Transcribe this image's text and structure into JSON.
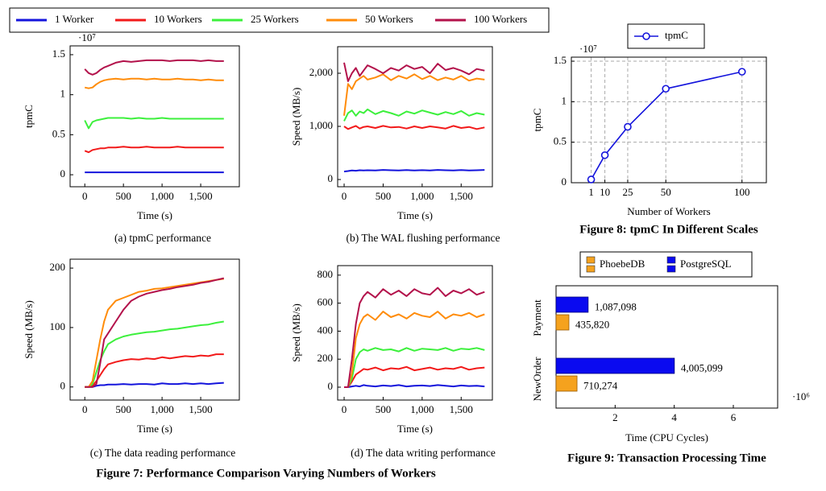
{
  "figure7_caption": "Figure 7: Performance Comparison Varying Numbers of Workers",
  "chart_data": [
    {
      "type": "line",
      "caption": "(a) tpmC performance",
      "x_label": "Time (s)",
      "y_label": "tpmC",
      "y_scale_label": "·10⁷",
      "xlim": [
        -190,
        2000
      ],
      "ylim": [
        -0.15,
        1.61
      ],
      "xticks": [
        0,
        500,
        {
          "value": 1000,
          "label": "1,000"
        },
        {
          "value": 1500,
          "label": "1,500"
        }
      ],
      "yticks": [
        0,
        0.5,
        1,
        1.5
      ],
      "x": [
        0,
        50,
        100,
        150,
        200,
        250,
        300,
        400,
        500,
        600,
        700,
        800,
        900,
        1000,
        1100,
        1200,
        1300,
        1400,
        1500,
        1600,
        1700,
        1800
      ],
      "series": [
        {
          "name": "1 Worker",
          "color": "#1414dc",
          "values": [
            0.03,
            0.03,
            0.03,
            0.03,
            0.03,
            0.03,
            0.03,
            0.03,
            0.03,
            0.03,
            0.03,
            0.03,
            0.03,
            0.03,
            0.03,
            0.03,
            0.03,
            0.03,
            0.03,
            0.03,
            0.03,
            0.03
          ]
        },
        {
          "name": "10 Workers",
          "color": "#f21a1a",
          "values": [
            0.3,
            0.28,
            0.31,
            0.32,
            0.33,
            0.33,
            0.34,
            0.34,
            0.35,
            0.34,
            0.34,
            0.35,
            0.34,
            0.34,
            0.34,
            0.35,
            0.34,
            0.34,
            0.34,
            0.34,
            0.34,
            0.34
          ]
        },
        {
          "name": "25 Workers",
          "color": "#3cf03c",
          "values": [
            0.68,
            0.58,
            0.66,
            0.68,
            0.69,
            0.7,
            0.71,
            0.71,
            0.71,
            0.7,
            0.71,
            0.7,
            0.7,
            0.71,
            0.7,
            0.7,
            0.7,
            0.7,
            0.7,
            0.7,
            0.7,
            0.7
          ]
        },
        {
          "name": "50 Workers",
          "color": "#ff8c0a",
          "values": [
            1.09,
            1.08,
            1.09,
            1.13,
            1.16,
            1.18,
            1.19,
            1.2,
            1.19,
            1.2,
            1.2,
            1.19,
            1.2,
            1.19,
            1.19,
            1.2,
            1.19,
            1.19,
            1.18,
            1.19,
            1.18,
            1.18
          ]
        },
        {
          "name": "100 Workers",
          "color": "#b3124b",
          "values": [
            1.32,
            1.27,
            1.25,
            1.27,
            1.31,
            1.34,
            1.36,
            1.4,
            1.42,
            1.41,
            1.42,
            1.43,
            1.43,
            1.43,
            1.42,
            1.43,
            1.43,
            1.43,
            1.42,
            1.43,
            1.42,
            1.42
          ]
        }
      ]
    },
    {
      "type": "line",
      "caption": "(b) The WAL flushing performance",
      "x_label": "Time (s)",
      "y_label": "Speed (MB/s)",
      "xlim": [
        -83,
        1900
      ],
      "ylim": [
        -136,
        2500
      ],
      "xticks": [
        0,
        500,
        {
          "value": 1000,
          "label": "1,000"
        },
        {
          "value": 1500,
          "label": "1,500"
        }
      ],
      "yticks": [
        0,
        {
          "value": 1000,
          "label": "1,000"
        },
        {
          "value": 2000,
          "label": "2,000"
        }
      ],
      "x": [
        0,
        50,
        100,
        150,
        200,
        250,
        300,
        400,
        500,
        600,
        700,
        800,
        900,
        1000,
        1100,
        1200,
        1300,
        1400,
        1500,
        1600,
        1700,
        1800
      ],
      "series": [
        {
          "name": "1 Worker",
          "color": "#1414dc",
          "values": [
            150,
            160,
            170,
            165,
            175,
            170,
            175,
            170,
            180,
            175,
            170,
            178,
            172,
            176,
            170,
            180,
            175,
            172,
            178,
            170,
            175,
            180
          ]
        },
        {
          "name": "10 Workers",
          "color": "#f21a1a",
          "values": [
            1000,
            950,
            980,
            1010,
            960,
            990,
            1000,
            970,
            1010,
            980,
            990,
            960,
            1000,
            970,
            1000,
            980,
            960,
            1010,
            970,
            990,
            950,
            980
          ]
        },
        {
          "name": "25 Workers",
          "color": "#3cf03c",
          "values": [
            1100,
            1250,
            1300,
            1200,
            1280,
            1250,
            1320,
            1230,
            1290,
            1250,
            1200,
            1280,
            1240,
            1300,
            1260,
            1220,
            1270,
            1230,
            1290,
            1200,
            1250,
            1220
          ]
        },
        {
          "name": "50 Workers",
          "color": "#ff8c0a",
          "values": [
            1200,
            1800,
            1700,
            1850,
            1900,
            1950,
            1880,
            1920,
            1980,
            1870,
            1950,
            1900,
            1980,
            1890,
            1950,
            1870,
            1920,
            1880,
            1950,
            1860,
            1900,
            1880
          ]
        },
        {
          "name": "100 Workers",
          "color": "#b3124b",
          "values": [
            2200,
            1850,
            2000,
            2100,
            1950,
            2050,
            2150,
            2080,
            2000,
            2100,
            2050,
            2150,
            2080,
            2120,
            2000,
            2180,
            2060,
            2100,
            2050,
            1980,
            2080,
            2050
          ]
        }
      ]
    },
    {
      "type": "line",
      "caption": "(c) The data reading performance",
      "x_label": "Time (s)",
      "y_label": "Speed (MB/s)",
      "xlim": [
        -190,
        2000
      ],
      "ylim": [
        -22,
        215
      ],
      "xticks": [
        0,
        500,
        {
          "value": 1000,
          "label": "1,000"
        },
        {
          "value": 1500,
          "label": "1,500"
        }
      ],
      "yticks": [
        0,
        100,
        200
      ],
      "x": [
        0,
        50,
        100,
        150,
        200,
        250,
        300,
        400,
        500,
        600,
        700,
        800,
        900,
        1000,
        1100,
        1200,
        1300,
        1400,
        1500,
        1600,
        1700,
        1800
      ],
      "series": [
        {
          "name": "1 Worker",
          "color": "#1414dc",
          "values": [
            0,
            0,
            0,
            2,
            3,
            3,
            4,
            4,
            5,
            4,
            5,
            5,
            4,
            6,
            5,
            5,
            6,
            5,
            6,
            5,
            6,
            7
          ]
        },
        {
          "name": "10 Workers",
          "color": "#f21a1a",
          "values": [
            0,
            0,
            2,
            10,
            20,
            30,
            38,
            42,
            45,
            47,
            46,
            48,
            47,
            50,
            48,
            50,
            52,
            51,
            53,
            52,
            55,
            55
          ]
        },
        {
          "name": "25 Workers",
          "color": "#3cf03c",
          "values": [
            0,
            0,
            5,
            25,
            45,
            60,
            72,
            80,
            85,
            88,
            90,
            92,
            93,
            95,
            97,
            98,
            100,
            102,
            104,
            105,
            108,
            110
          ]
        },
        {
          "name": "50 Workers",
          "color": "#ff8c0a",
          "values": [
            0,
            0,
            10,
            45,
            80,
            110,
            130,
            145,
            150,
            155,
            160,
            162,
            165,
            166,
            168,
            170,
            172,
            174,
            176,
            178,
            180,
            182
          ]
        },
        {
          "name": "100 Workers",
          "color": "#b3124b",
          "values": [
            0,
            0,
            0,
            5,
            40,
            80,
            90,
            110,
            130,
            145,
            152,
            157,
            160,
            163,
            165,
            168,
            170,
            172,
            175,
            177,
            180,
            183
          ]
        }
      ]
    },
    {
      "type": "line",
      "caption": "(d) The data writing performance",
      "x_label": "Time (s)",
      "y_label": "Speed (MB/s)",
      "xlim": [
        -83,
        1900
      ],
      "ylim": [
        -92,
        868
      ],
      "xticks": [
        0,
        500,
        {
          "value": 1000,
          "label": "1,000"
        },
        {
          "value": 1500,
          "label": "1,500"
        }
      ],
      "yticks": [
        0,
        200,
        400,
        600,
        800
      ],
      "x": [
        0,
        50,
        100,
        150,
        200,
        250,
        300,
        400,
        500,
        600,
        700,
        800,
        900,
        1000,
        1100,
        1200,
        1300,
        1400,
        1500,
        1600,
        1700,
        1800
      ],
      "series": [
        {
          "name": "1 Worker",
          "color": "#1414dc",
          "values": [
            0,
            0,
            5,
            10,
            5,
            15,
            10,
            5,
            12,
            8,
            15,
            5,
            10,
            12,
            8,
            15,
            10,
            5,
            12,
            8,
            10,
            5
          ]
        },
        {
          "name": "10 Workers",
          "color": "#f21a1a",
          "values": [
            0,
            0,
            40,
            90,
            110,
            130,
            125,
            140,
            120,
            135,
            130,
            145,
            120,
            130,
            140,
            125,
            135,
            130,
            145,
            125,
            135,
            140
          ]
        },
        {
          "name": "25 Workers",
          "color": "#3cf03c",
          "values": [
            0,
            0,
            60,
            200,
            250,
            270,
            260,
            280,
            265,
            270,
            255,
            280,
            260,
            275,
            270,
            265,
            280,
            260,
            275,
            270,
            280,
            265
          ]
        },
        {
          "name": "50 Workers",
          "color": "#ff8c0a",
          "values": [
            0,
            0,
            100,
            350,
            450,
            500,
            520,
            480,
            540,
            500,
            520,
            490,
            530,
            510,
            500,
            540,
            490,
            520,
            510,
            530,
            500,
            520
          ]
        },
        {
          "name": "100 Workers",
          "color": "#b3124b",
          "values": [
            0,
            0,
            200,
            450,
            600,
            650,
            680,
            640,
            700,
            660,
            690,
            650,
            700,
            670,
            660,
            710,
            650,
            690,
            670,
            700,
            660,
            680
          ]
        }
      ]
    },
    {
      "type": "line",
      "caption": "Figure 8: tpmC In Different Scales",
      "x_label": "Number of Workers",
      "y_label": "tpmC",
      "y_scale_label": "·10⁷",
      "xlim": [
        -12,
        116
      ],
      "ylim": [
        0,
        1.55
      ],
      "xticks": [
        1,
        10,
        25,
        50,
        100
      ],
      "yticks": [
        0,
        0.5,
        1,
        1.5
      ],
      "grid": true,
      "markers": true,
      "x": [
        1,
        10,
        25,
        50,
        100
      ],
      "series": [
        {
          "name": "tpmC",
          "color": "#1414dc",
          "values": [
            0.04,
            0.34,
            0.69,
            1.16,
            1.37
          ]
        }
      ]
    },
    {
      "type": "hbar",
      "caption": "Figure 9: Transaction Processing Time",
      "x_label": "Time (CPU Cycles)",
      "x_scale_label": "·10⁶",
      "xlim": [
        0,
        7500000
      ],
      "xticks": [
        {
          "value": 2000000,
          "label": "2"
        },
        {
          "value": 4000000,
          "label": "4"
        },
        {
          "value": 6000000,
          "label": "6"
        }
      ],
      "categories": [
        "Payment",
        "NewOrder"
      ],
      "series": [
        {
          "name": "PhoebeDB",
          "color": "#f5a21e",
          "values": [
            435820,
            710274
          ],
          "value_labels": [
            "435,820",
            "710,274"
          ]
        },
        {
          "name": "PostgreSQL",
          "color": "#0a0af0",
          "values": [
            1087098,
            4005099
          ],
          "value_labels": [
            "1,087,098",
            "4,005,099"
          ]
        }
      ]
    }
  ]
}
